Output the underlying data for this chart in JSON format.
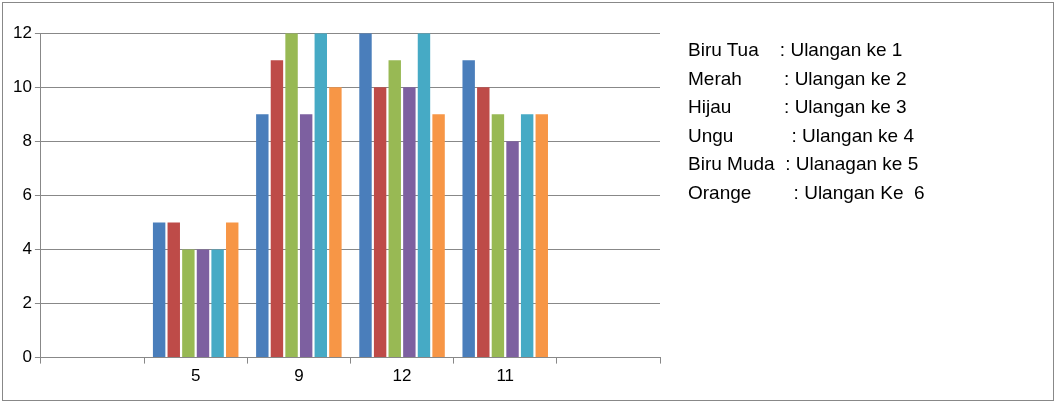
{
  "chart_data": {
    "type": "bar",
    "categories": [
      null,
      "5",
      "9",
      "12",
      "11",
      null
    ],
    "series": [
      {
        "color": "#4a7ebb",
        "values": [
          null,
          5,
          9,
          12,
          11,
          null
        ]
      },
      {
        "color": "#be4b48",
        "values": [
          null,
          5,
          11,
          10,
          10,
          null
        ]
      },
      {
        "color": "#98b954",
        "values": [
          null,
          4,
          12,
          11,
          9,
          null
        ]
      },
      {
        "color": "#7d60a0",
        "values": [
          null,
          4,
          9,
          10,
          8,
          null
        ]
      },
      {
        "color": "#46aac5",
        "values": [
          null,
          4,
          12,
          12,
          9,
          null
        ]
      },
      {
        "color": "#f79646",
        "values": [
          null,
          5,
          10,
          9,
          9,
          null
        ]
      }
    ],
    "ylim": [
      0,
      12
    ],
    "yticks": [
      0,
      2,
      4,
      6,
      8,
      10,
      12
    ],
    "grid": "y",
    "annotations": [
      "Biru Tua    : Ulangan ke 1",
      "Merah        : Ulangan ke 2",
      "Hijau          : Ulangan ke 3",
      "Ungu           : Ulangan ke 4",
      "Biru Muda  : Ulanagan ke 5",
      "Orange        : Ulangan Ke  6"
    ]
  }
}
